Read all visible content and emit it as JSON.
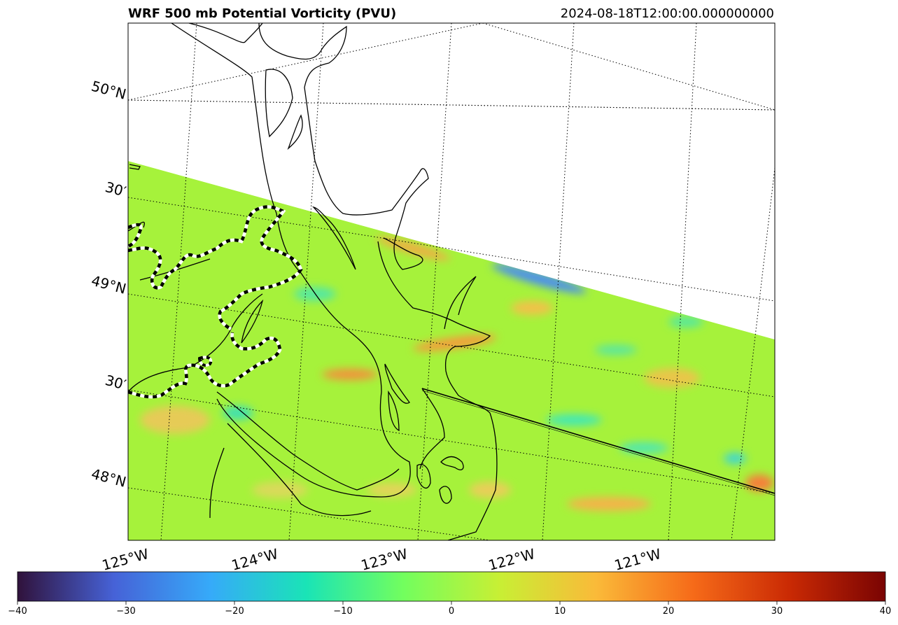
{
  "chart_data": {
    "type": "heatmap",
    "title": "WRF 500 mb Potential Vorticity (PVU)",
    "timestamp": "2024-08-18T12:00:00.000000000",
    "map": {
      "projection": "rotated lat/lon (Lambert-like)",
      "lon_labels": [
        "125°W",
        "124°W",
        "123°W",
        "122°W",
        "121°W"
      ],
      "lat_labels": [
        "50°N",
        "30′",
        "49°N",
        "30′",
        "48°N"
      ],
      "gridlines": true,
      "data_extent": "partial coverage; no data in upper-right (north) portion",
      "coastlines": true
    },
    "colorbar": {
      "orientation": "horizontal",
      "position": "bottom",
      "vmin": -40,
      "vmax": 40,
      "ticks": [
        -40,
        -30,
        -20,
        -10,
        0,
        10,
        20,
        30,
        40
      ],
      "tick_labels": [
        "−40",
        "−30",
        "−20",
        "−10",
        "0",
        "10",
        "20",
        "30",
        "40"
      ],
      "colormap": "turbo",
      "colors": [
        "#30123b",
        "#4662d7",
        "#36aaf9",
        "#1ae4b6",
        "#72fe5e",
        "#c8ef34",
        "#faba39",
        "#f66b19",
        "#ca2a04",
        "#7a0403"
      ]
    },
    "field_description_values": {
      "dominant_value": 3,
      "range_observed": [
        -15,
        20
      ]
    },
    "colors": {
      "background_field": "#a6f23b",
      "no_data": "#ffffff",
      "frame": "#000000"
    }
  }
}
